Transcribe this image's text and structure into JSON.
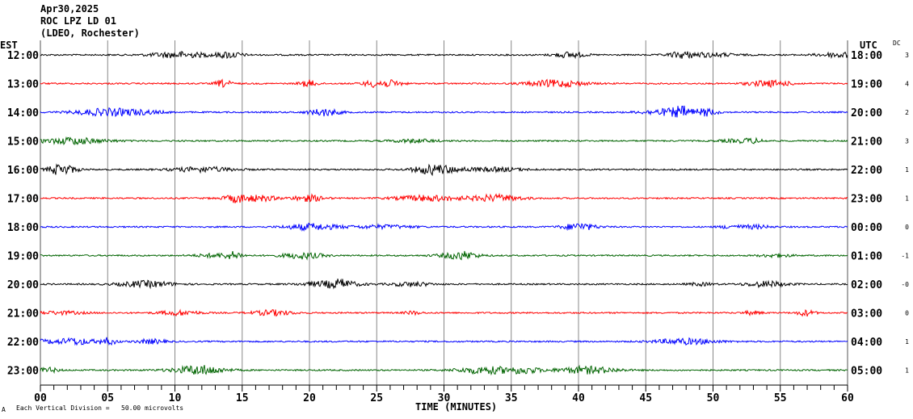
{
  "header": {
    "date": "Apr30,2025",
    "station": "ROC LPZ LD 01",
    "network": "(LDEO, Rochester)"
  },
  "chart_data": {
    "type": "line",
    "title": "ROC LPZ LD 01 helicorder",
    "left_axis_label": "EST",
    "right_axis_label": "UTC",
    "dc_label": "DC",
    "xlabel": "TIME (MINUTES)",
    "xlim": [
      0,
      60
    ],
    "x_ticks": [
      "00",
      "05",
      "10",
      "15",
      "20",
      "25",
      "30",
      "35",
      "40",
      "45",
      "50",
      "55",
      "60"
    ],
    "minor_tick_step_minutes": 1,
    "scale_note": "Each Vertical Division =   50.00 microvolts",
    "corner_mark": "A",
    "grid": true,
    "rows": [
      {
        "est": "12:00",
        "utc": "18:00",
        "dc": "3",
        "color": "#000000"
      },
      {
        "est": "13:00",
        "utc": "19:00",
        "dc": "4",
        "color": "#ff0000"
      },
      {
        "est": "14:00",
        "utc": "20:00",
        "dc": "2",
        "color": "#0000ff"
      },
      {
        "est": "15:00",
        "utc": "21:00",
        "dc": "3",
        "color": "#006400"
      },
      {
        "est": "16:00",
        "utc": "22:00",
        "dc": "1",
        "color": "#000000"
      },
      {
        "est": "17:00",
        "utc": "23:00",
        "dc": "1",
        "color": "#ff0000"
      },
      {
        "est": "18:00",
        "utc": "00:00",
        "dc": "0",
        "color": "#0000ff"
      },
      {
        "est": "19:00",
        "utc": "01:00",
        "dc": "-1",
        "color": "#006400"
      },
      {
        "est": "20:00",
        "utc": "02:00",
        "dc": "-0",
        "color": "#000000"
      },
      {
        "est": "21:00",
        "utc": "03:00",
        "dc": "0",
        "color": "#ff0000"
      },
      {
        "est": "22:00",
        "utc": "04:00",
        "dc": "1",
        "color": "#0000ff"
      },
      {
        "est": "23:00",
        "utc": "05:00",
        "dc": "1",
        "color": "#006400"
      }
    ]
  }
}
